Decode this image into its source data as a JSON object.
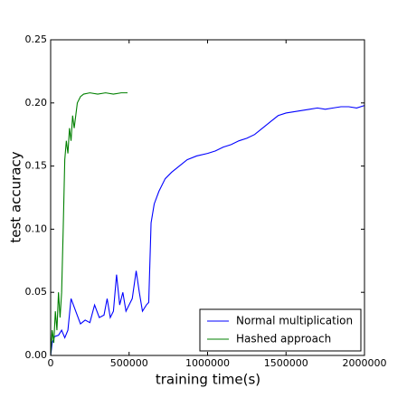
{
  "chart_data": {
    "type": "line",
    "x_label": "training time(s)",
    "y_label": "test accuracy",
    "xlim": [
      0,
      2000000
    ],
    "ylim": [
      0,
      0.25
    ],
    "xticks": [
      0,
      500000,
      1000000,
      1500000,
      2000000
    ],
    "yticks": [
      {
        "value": 0,
        "label": "0.00"
      },
      {
        "value": 0.05,
        "label": "0.05"
      },
      {
        "value": 0.1,
        "label": "0.10"
      },
      {
        "value": 0.15,
        "label": "0.15"
      },
      {
        "value": 0.2,
        "label": "0.20"
      },
      {
        "value": 0.25,
        "label": "0.25"
      }
    ],
    "legend": "lower right",
    "series": [
      {
        "name": "Normal multiplication",
        "color": "#0000ff",
        "x": [
          0,
          10000,
          25000,
          50000,
          70000,
          90000,
          110000,
          130000,
          160000,
          190000,
          220000,
          250000,
          280000,
          310000,
          340000,
          360000,
          380000,
          400000,
          420000,
          440000,
          460000,
          480000,
          500000,
          520000,
          545000,
          565000,
          585000,
          610000,
          625000,
          640000,
          660000,
          690000,
          730000,
          770000,
          820000,
          870000,
          930000,
          1000000,
          1050000,
          1100000,
          1150000,
          1200000,
          1250000,
          1300000,
          1350000,
          1400000,
          1450000,
          1500000,
          1550000,
          1600000,
          1650000,
          1700000,
          1750000,
          1800000,
          1850000,
          1900000,
          1950000,
          2000000
        ],
        "values": [
          0,
          0.01,
          0.015,
          0.016,
          0.02,
          0.014,
          0.02,
          0.045,
          0.035,
          0.025,
          0.028,
          0.026,
          0.04,
          0.03,
          0.032,
          0.045,
          0.03,
          0.035,
          0.064,
          0.04,
          0.05,
          0.035,
          0.04,
          0.045,
          0.067,
          0.05,
          0.035,
          0.04,
          0.042,
          0.105,
          0.12,
          0.13,
          0.14,
          0.145,
          0.15,
          0.155,
          0.158,
          0.16,
          0.162,
          0.165,
          0.167,
          0.17,
          0.172,
          0.175,
          0.18,
          0.185,
          0.19,
          0.192,
          0.193,
          0.194,
          0.195,
          0.196,
          0.195,
          0.196,
          0.197,
          0.197,
          0.196,
          0.198
        ]
      },
      {
        "name": "Hashed approach",
        "color": "#008000",
        "x": [
          0,
          10000,
          20000,
          30000,
          40000,
          50000,
          60000,
          70000,
          80000,
          90000,
          100000,
          110000,
          120000,
          130000,
          140000,
          150000,
          170000,
          190000,
          210000,
          250000,
          300000,
          350000,
          400000,
          450000,
          490000
        ],
        "values": [
          0,
          0.02,
          0.01,
          0.035,
          0.02,
          0.05,
          0.03,
          0.05,
          0.1,
          0.155,
          0.17,
          0.16,
          0.18,
          0.17,
          0.19,
          0.18,
          0.2,
          0.205,
          0.207,
          0.208,
          0.207,
          0.208,
          0.207,
          0.208,
          0.208
        ]
      }
    ]
  }
}
